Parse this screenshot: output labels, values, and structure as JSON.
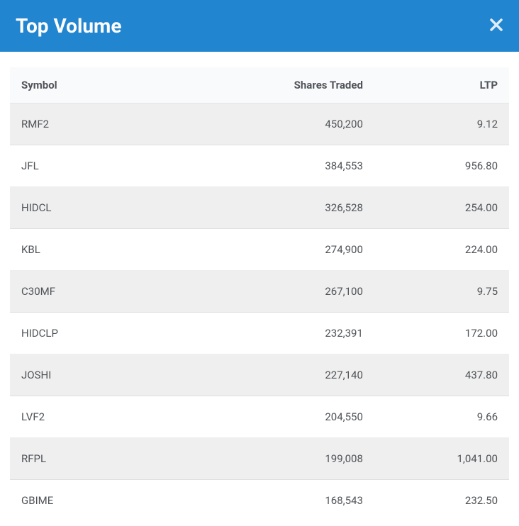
{
  "header": {
    "title": "Top Volume"
  },
  "table": {
    "type": "table",
    "header_bg": "#2185d0",
    "header_text_color": "#ffffff",
    "thead_bg": "#f9fafb",
    "row_odd_bg": "#efefef",
    "row_even_bg": "#ffffff",
    "text_color": "#4f5357",
    "columns": [
      {
        "key": "symbol",
        "label": "Symbol",
        "align": "left"
      },
      {
        "key": "shares",
        "label": "Shares Traded",
        "align": "right"
      },
      {
        "key": "ltp",
        "label": "LTP",
        "align": "right"
      }
    ],
    "rows": [
      {
        "symbol": "RMF2",
        "shares": "450,200",
        "ltp": "9.12"
      },
      {
        "symbol": "JFL",
        "shares": "384,553",
        "ltp": "956.80"
      },
      {
        "symbol": "HIDCL",
        "shares": "326,528",
        "ltp": "254.00"
      },
      {
        "symbol": "KBL",
        "shares": "274,900",
        "ltp": "224.00"
      },
      {
        "symbol": "C30MF",
        "shares": "267,100",
        "ltp": "9.75"
      },
      {
        "symbol": "HIDCLP",
        "shares": "232,391",
        "ltp": "172.00"
      },
      {
        "symbol": "JOSHI",
        "shares": "227,140",
        "ltp": "437.80"
      },
      {
        "symbol": "LVF2",
        "shares": "204,550",
        "ltp": "9.66"
      },
      {
        "symbol": "RFPL",
        "shares": "199,008",
        "ltp": "1,041.00"
      },
      {
        "symbol": "GBIME",
        "shares": "168,543",
        "ltp": "232.50"
      }
    ]
  }
}
